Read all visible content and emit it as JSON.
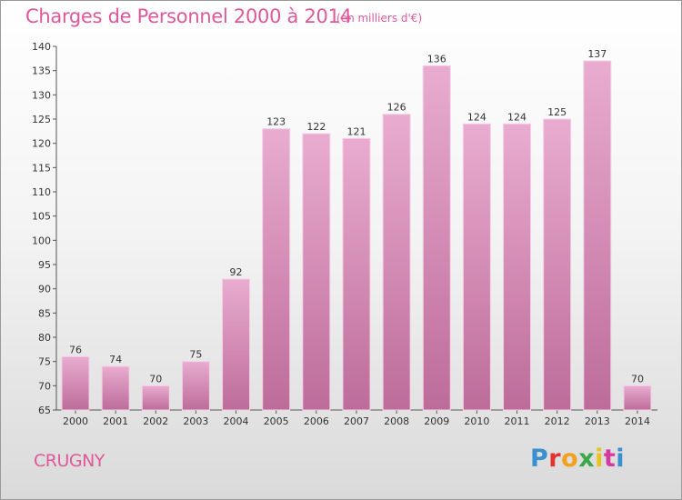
{
  "title": "Charges de Personnel 2000 à 2014",
  "subtitle": "(en milliers d'€)",
  "commune": "CRUGNY",
  "brand": "Proxiti",
  "colors": {
    "title": "#e0589a",
    "bar_light": "#e9acd0",
    "bar_dark": "#bd6c9a",
    "axis": "#555555"
  },
  "chart_data": {
    "type": "bar",
    "title": "Charges de Personnel 2000 à 2014",
    "subtitle": "(en milliers d'€)",
    "categories": [
      "2000",
      "2001",
      "2002",
      "2003",
      "2004",
      "2005",
      "2006",
      "2007",
      "2008",
      "2009",
      "2010",
      "2011",
      "2012",
      "2013",
      "2014"
    ],
    "values": [
      76,
      74,
      70,
      75,
      92,
      123,
      122,
      121,
      126,
      136,
      124,
      124,
      125,
      137,
      70
    ],
    "ylim": [
      65,
      140
    ],
    "yticks": [
      65,
      70,
      75,
      80,
      85,
      90,
      95,
      100,
      105,
      110,
      115,
      120,
      125,
      130,
      135,
      140
    ],
    "grid": false,
    "legend": "none"
  }
}
